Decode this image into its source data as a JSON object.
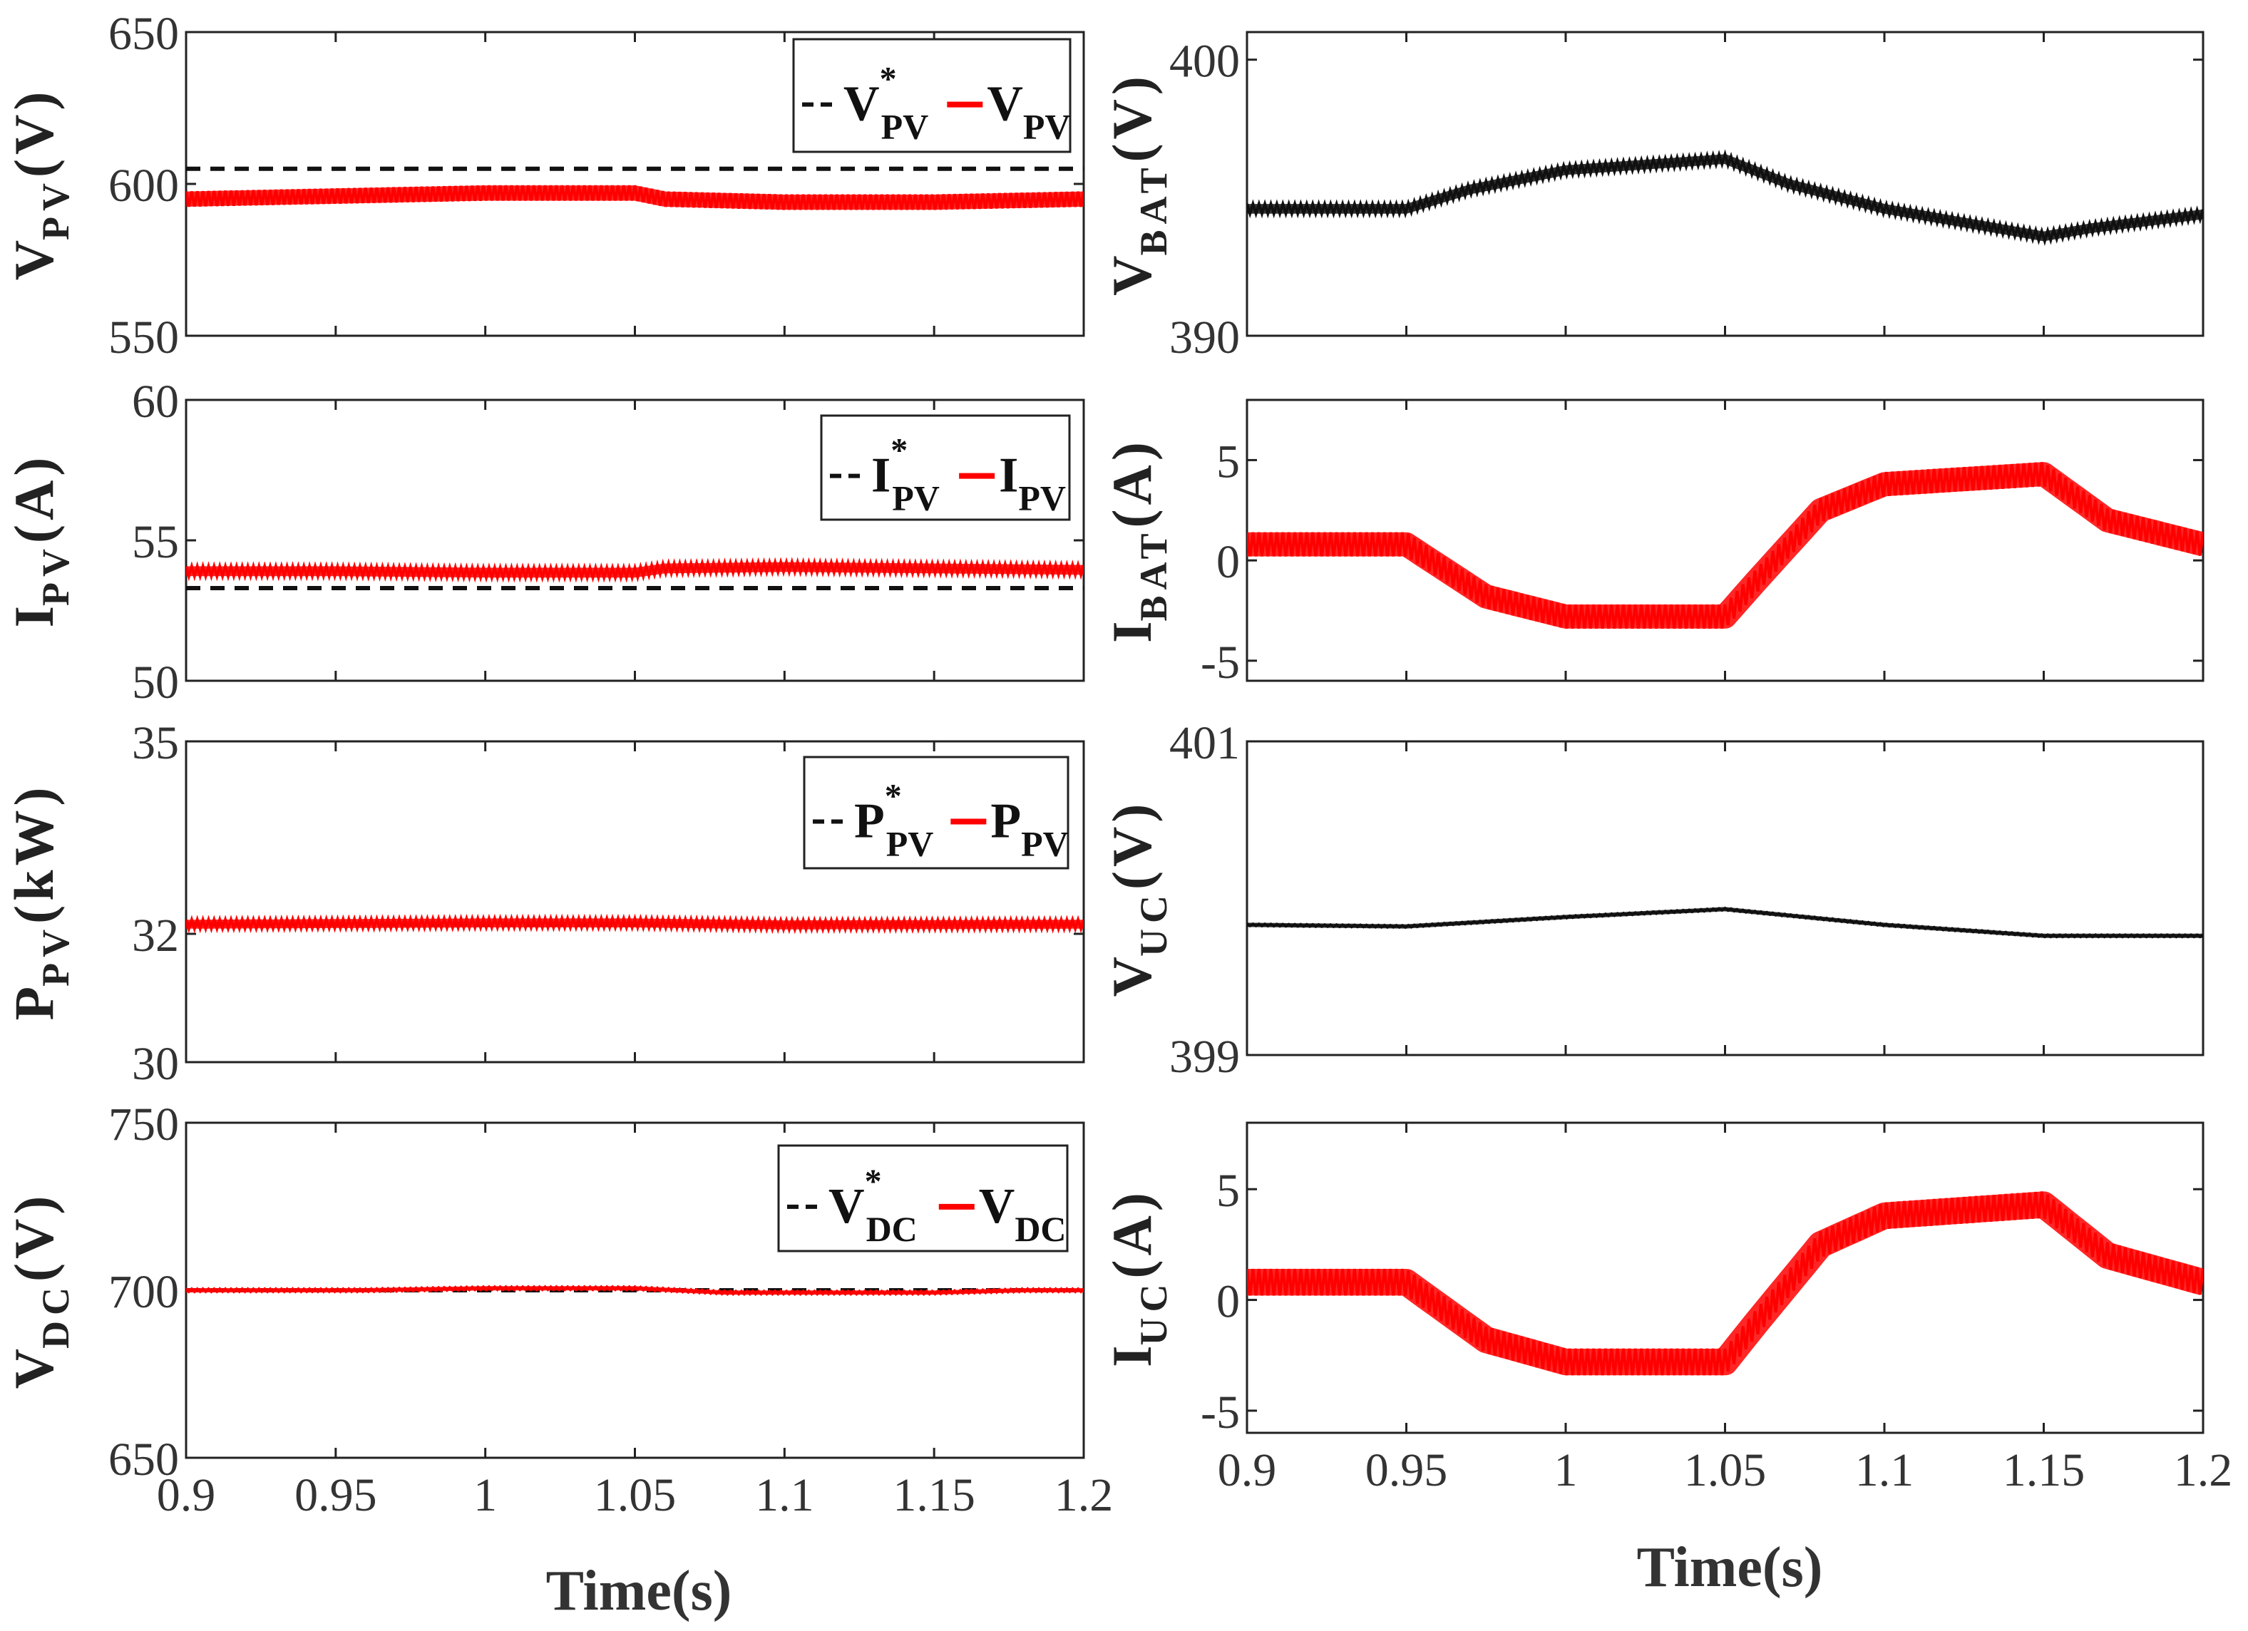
{
  "colors": {
    "ref": "#111111",
    "meas": "#ff0000",
    "black": "#111111",
    "axis": "#222222"
  },
  "x_axis": {
    "label": "Time(s)",
    "range": [
      0.9,
      1.2
    ],
    "ticks": [
      "0.9",
      "0.95",
      "1",
      "1.05",
      "1.1",
      "1.15",
      "1.2"
    ]
  },
  "chart_data": [
    {
      "id": "vpv",
      "type": "line",
      "col": 0,
      "row": 0,
      "ylabel": {
        "main": "V",
        "sub": "PV",
        "unit": "(V)"
      },
      "ylim": [
        550,
        650
      ],
      "yticks": [
        "650",
        "600",
        "550"
      ],
      "legend": {
        "ref": {
          "main": "V",
          "sup": "*",
          "sub": "PV"
        },
        "meas": {
          "main": "V",
          "sub": "PV"
        }
      },
      "series": [
        {
          "name": "V*PV",
          "style": "ref",
          "x": [
            0.9,
            1.2
          ],
          "y": [
            605,
            605
          ]
        },
        {
          "name": "VPV",
          "style": "meas",
          "x": [
            0.9,
            0.95,
            1.0,
            1.05,
            1.06,
            1.1,
            1.15,
            1.2
          ],
          "y": [
            595,
            596,
            597,
            597,
            595,
            594,
            594,
            595
          ],
          "ripple": 5
        }
      ]
    },
    {
      "id": "vbat",
      "type": "line",
      "col": 1,
      "row": 0,
      "ylabel": {
        "main": "V",
        "sub": "BAT",
        "unit": "(V)"
      },
      "ylim": [
        390,
        401
      ],
      "yticks": [
        "400",
        "390"
      ],
      "series": [
        {
          "name": "VBAT",
          "style": "black",
          "x": [
            0.9,
            0.95,
            0.97,
            1.0,
            1.05,
            1.07,
            1.1,
            1.15,
            1.165,
            1.2
          ],
          "y": [
            394.6,
            394.6,
            395.3,
            396.0,
            396.4,
            395.5,
            394.6,
            393.6,
            393.9,
            394.4
          ],
          "ripple": 0.35
        }
      ]
    },
    {
      "id": "ipv",
      "type": "line",
      "col": 0,
      "row": 1,
      "ylabel": {
        "main": "I",
        "sub": "PV",
        "unit": "(A)"
      },
      "ylim": [
        50,
        60
      ],
      "yticks": [
        "60",
        "55",
        "50"
      ],
      "legend": {
        "ref": {
          "main": "I",
          "sup": "*",
          "sub": "PV"
        },
        "meas": {
          "main": "I",
          "sub": "PV"
        }
      },
      "series": [
        {
          "name": "I*PV",
          "style": "ref",
          "x": [
            0.9,
            1.2
          ],
          "y": [
            53.3,
            53.3
          ]
        },
        {
          "name": "IPV",
          "style": "meas",
          "x": [
            0.9,
            0.95,
            1.0,
            1.05,
            1.06,
            1.1,
            1.15,
            1.2
          ],
          "y": [
            53.9,
            53.9,
            53.85,
            53.85,
            54.0,
            54.05,
            54.0,
            53.95
          ],
          "ripple": 0.35
        }
      ]
    },
    {
      "id": "ibat",
      "type": "line",
      "col": 1,
      "row": 1,
      "ylabel": {
        "main": "I",
        "sub": "BAT",
        "unit": "(A)"
      },
      "ylim": [
        -6,
        8
      ],
      "yticks": [
        "5",
        "0",
        "-5"
      ],
      "series": [
        {
          "name": "IBAT",
          "style": "meas",
          "x": [
            0.9,
            0.95,
            0.975,
            1.0,
            1.05,
            1.06,
            1.08,
            1.1,
            1.15,
            1.17,
            1.2
          ],
          "y": [
            0.8,
            0.8,
            -1.8,
            -2.8,
            -2.8,
            -1.0,
            2.5,
            3.8,
            4.3,
            2.0,
            0.8
          ],
          "ripple": 1.2
        }
      ]
    },
    {
      "id": "ppv",
      "type": "line",
      "col": 0,
      "row": 2,
      "ylabel": {
        "main": "P",
        "sub": "PV",
        "unit": "(kW)"
      },
      "ylim": [
        30,
        35
      ],
      "yticks": [
        "35",
        "32",
        "30"
      ],
      "legend": {
        "ref": {
          "main": "P",
          "sup": "*",
          "sub": "PV"
        },
        "meas": {
          "main": "P",
          "sub": "PV"
        }
      },
      "series": [
        {
          "name": "P*PV",
          "style": "ref",
          "x": [
            0.9,
            1.2
          ],
          "y": [
            32.15,
            32.15
          ]
        },
        {
          "name": "PPV",
          "style": "meas",
          "x": [
            0.9,
            1.0,
            1.05,
            1.1,
            1.2
          ],
          "y": [
            32.15,
            32.17,
            32.17,
            32.14,
            32.15
          ],
          "ripple": 0.14
        }
      ]
    },
    {
      "id": "vuc",
      "type": "line",
      "col": 1,
      "row": 2,
      "ylabel": {
        "main": "V",
        "sub": "UC",
        "unit": "(V)"
      },
      "ylim": [
        399,
        401
      ],
      "yticks": [
        "401",
        "399"
      ],
      "series": [
        {
          "name": "VUC",
          "style": "black",
          "x": [
            0.9,
            0.95,
            1.0,
            1.05,
            1.1,
            1.15,
            1.2
          ],
          "y": [
            399.83,
            399.82,
            399.88,
            399.93,
            399.83,
            399.76,
            399.76
          ],
          "ripple": 0.012
        }
      ]
    },
    {
      "id": "vdc",
      "type": "line",
      "col": 0,
      "row": 3,
      "ylabel": {
        "main": "V",
        "sub": "DC",
        "unit": "(V)"
      },
      "ylim": [
        650,
        750
      ],
      "yticks": [
        "750",
        "700",
        "650"
      ],
      "legend": {
        "ref": {
          "main": "V",
          "sup": "*",
          "sub": "DC"
        },
        "meas": {
          "main": "V",
          "sub": "DC"
        }
      },
      "series": [
        {
          "name": "V*DC",
          "style": "ref",
          "x": [
            0.9,
            1.2
          ],
          "y": [
            700,
            700
          ]
        },
        {
          "name": "VDC",
          "style": "meas",
          "x": [
            0.9,
            0.96,
            1.0,
            1.05,
            1.08,
            1.15,
            1.18,
            1.2
          ],
          "y": [
            700,
            700,
            700.6,
            700.6,
            699.3,
            699.3,
            700,
            700
          ],
          "ripple": 0.8
        }
      ]
    },
    {
      "id": "iuc",
      "type": "line",
      "col": 1,
      "row": 3,
      "ylabel": {
        "main": "I",
        "sub": "UC",
        "unit": "(A)"
      },
      "ylim": [
        -6,
        8
      ],
      "yticks": [
        "5",
        "0",
        "-5"
      ],
      "series": [
        {
          "name": "IUC",
          "style": "meas",
          "x": [
            0.9,
            0.95,
            0.975,
            1.0,
            1.05,
            1.06,
            1.08,
            1.1,
            1.15,
            1.17,
            1.2
          ],
          "y": [
            0.8,
            0.8,
            -1.8,
            -2.8,
            -2.8,
            -1.0,
            2.5,
            3.8,
            4.3,
            2.0,
            0.8
          ],
          "ripple": 1.2
        }
      ]
    }
  ]
}
